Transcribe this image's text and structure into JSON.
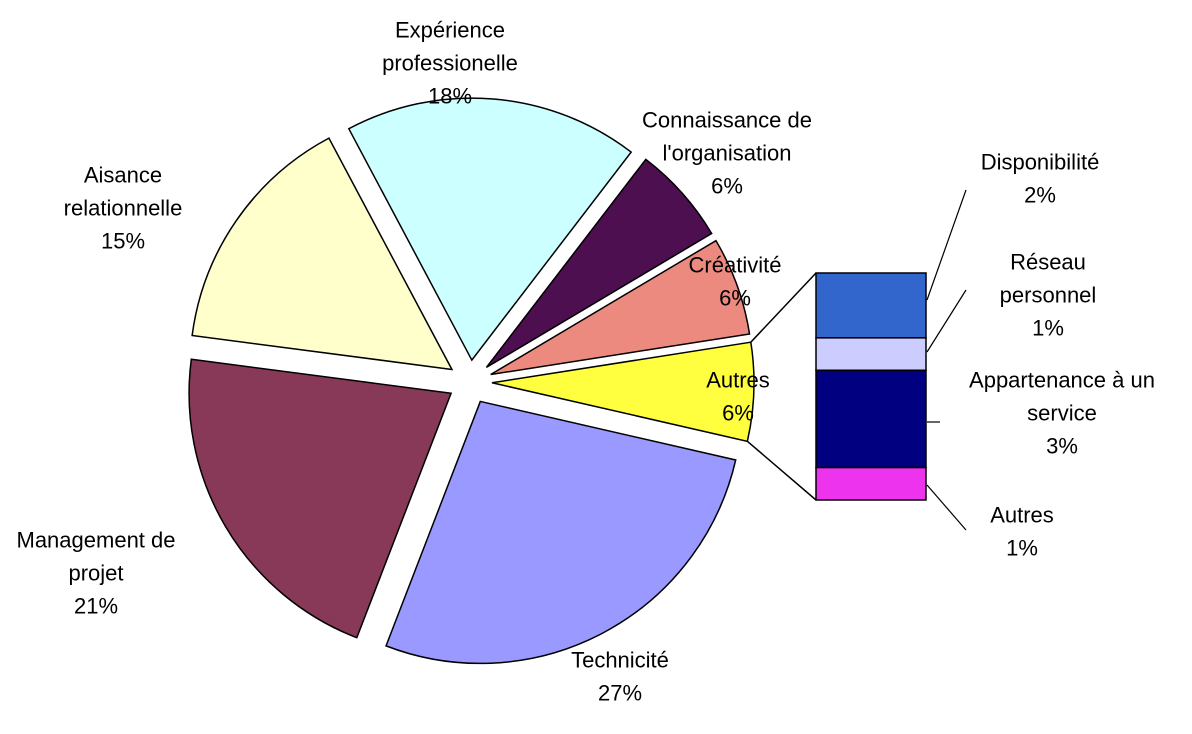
{
  "chart_data": {
    "type": "pie",
    "slices": [
      {
        "lines": [
          "Expérience",
          "professionelle"
        ],
        "value": 18,
        "label": "18%",
        "color": "#ccffff"
      },
      {
        "lines": [
          "Connaissance de",
          "l'organisation"
        ],
        "value": 6,
        "label": "6%",
        "color": "#4d0f50"
      },
      {
        "lines": [
          "Créativité"
        ],
        "value": 6,
        "label": "6%",
        "color": "#ed8a80"
      },
      {
        "lines": [
          "Autres"
        ],
        "value": 6,
        "label": "6%",
        "color": "#ffff3f"
      },
      {
        "lines": [
          "Technicité"
        ],
        "value": 27,
        "label": "27%",
        "color": "#9999ff"
      },
      {
        "lines": [
          "Management de",
          "projet"
        ],
        "value": 21,
        "label": "21%",
        "color": "#873957"
      },
      {
        "lines": [
          "Aisance",
          "relationnelle"
        ],
        "value": 15,
        "label": "15%",
        "color": "#ffffcc"
      }
    ],
    "breakdown": {
      "of": "Autres",
      "items": [
        {
          "lines": [
            "Disponibilité"
          ],
          "value": 2,
          "label": "2%",
          "color": "#3366cc"
        },
        {
          "lines": [
            "Réseau",
            "personnel"
          ],
          "value": 1,
          "label": "1%",
          "color": "#ccccff"
        },
        {
          "lines": [
            "Appartenance à un",
            "service"
          ],
          "value": 3,
          "label": "3%",
          "color": "#000080"
        },
        {
          "lines": [
            "Autres"
          ],
          "value": 1,
          "label": "1%",
          "color": "#ee33ee"
        }
      ]
    }
  }
}
